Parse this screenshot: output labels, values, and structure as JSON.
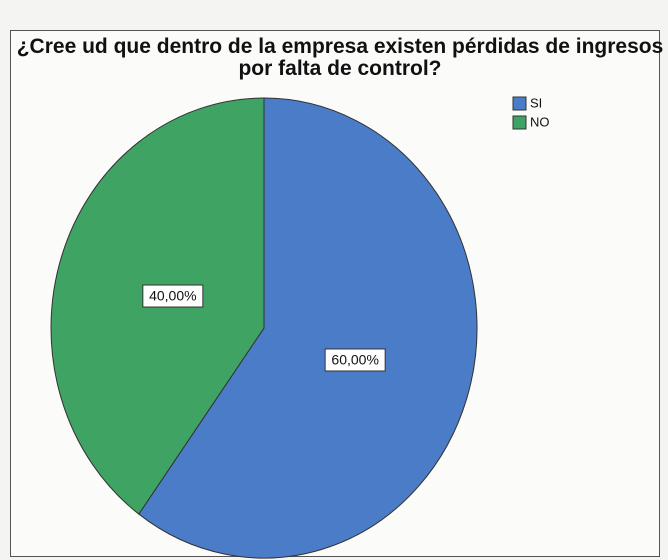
{
  "chart_data": {
    "type": "pie",
    "title": "¿Cree ud que dentro de la empresa existen pérdidas de ingresos por falta de control?",
    "categories": [
      "SI",
      "NO"
    ],
    "values": [
      60,
      40
    ],
    "value_labels": [
      "60,00%",
      "40,00%"
    ],
    "colors": [
      "#4a7cc8",
      "#3fa463"
    ],
    "legend": "top-right"
  }
}
